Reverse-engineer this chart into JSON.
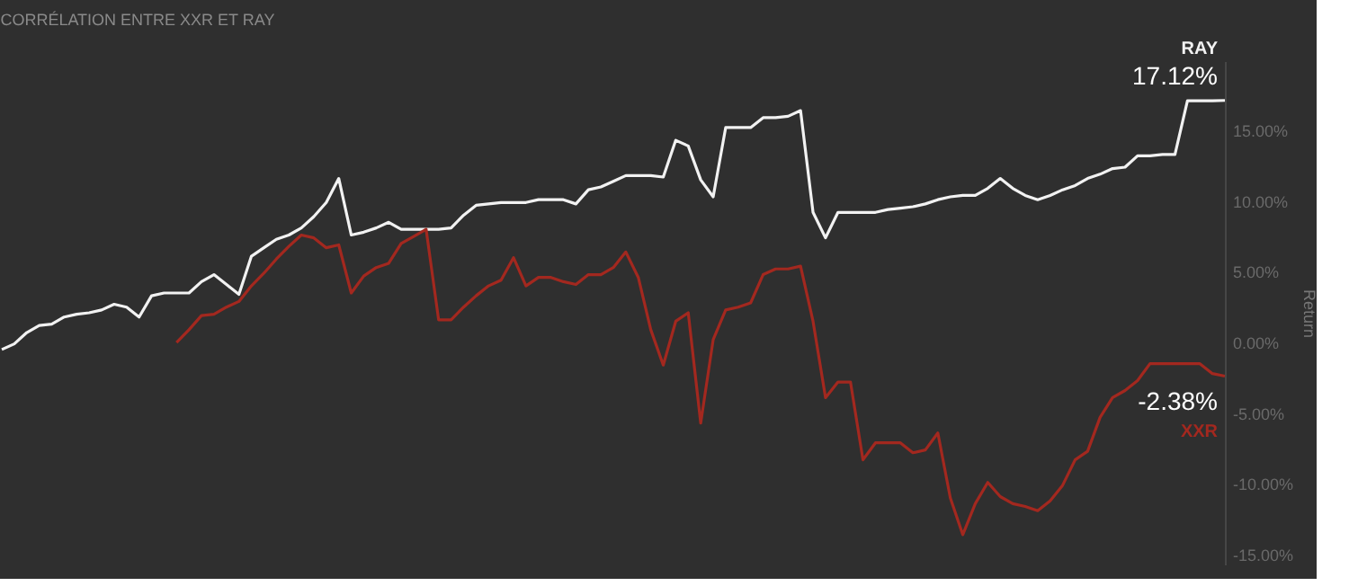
{
  "chart_data": {
    "type": "line",
    "title": "CORRÉLATION ENTRE XXR ET RAY",
    "ylabel": "Return",
    "categories": [
      null,
      null,
      null,
      null,
      null,
      null,
      null,
      null,
      null,
      null,
      null,
      null,
      null,
      null,
      null,
      null,
      null,
      null,
      null,
      null,
      null,
      null,
      null,
      null,
      null,
      null,
      null,
      null,
      null,
      null,
      null,
      null,
      null,
      null,
      null,
      null,
      null,
      null,
      null,
      null,
      null,
      null,
      null,
      null,
      null,
      null,
      null,
      null,
      null,
      null,
      null,
      null,
      null,
      null,
      null,
      null,
      null,
      null,
      null,
      null,
      null,
      null,
      null,
      null,
      null,
      null,
      null,
      null,
      null,
      null,
      null,
      null,
      null,
      null,
      null,
      null,
      null,
      null,
      null,
      null,
      null,
      null,
      null,
      null,
      null,
      null,
      null,
      null,
      null,
      null,
      null,
      null,
      null,
      null,
      null,
      null,
      null,
      null,
      null
    ],
    "series": [
      {
        "name": "RAY",
        "color": "#f2f2f2",
        "values": [
          -0.5,
          -0.1,
          0.7,
          1.2,
          1.3,
          1.8,
          2.0,
          2.1,
          2.3,
          2.7,
          2.5,
          1.8,
          3.3,
          3.5,
          3.5,
          3.5,
          4.3,
          4.8,
          4.1,
          3.4,
          6.1,
          6.7,
          7.3,
          7.6,
          8.1,
          8.9,
          9.9,
          11.6,
          7.6,
          7.8,
          8.1,
          8.5,
          8.0,
          8.0,
          8.0,
          8.0,
          8.1,
          9.0,
          9.7,
          9.8,
          9.9,
          9.9,
          9.9,
          10.1,
          10.1,
          10.1,
          9.8,
          10.8,
          11.0,
          11.4,
          11.8,
          11.8,
          11.8,
          11.7,
          14.3,
          13.9,
          11.5,
          10.3,
          15.2,
          15.2,
          15.2,
          15.9,
          15.9,
          16.0,
          16.4,
          9.2,
          7.4,
          9.2,
          9.2,
          9.2,
          9.2,
          9.4,
          9.5,
          9.6,
          9.8,
          10.1,
          10.3,
          10.4,
          10.4,
          10.9,
          11.6,
          10.9,
          10.4,
          10.1,
          10.4,
          10.8,
          11.1,
          11.6,
          11.9,
          12.3,
          12.4,
          13.2,
          13.2,
          13.3,
          13.3,
          17.1,
          17.1,
          17.1,
          17.12
        ],
        "value_labels": [
          null,
          null,
          null,
          null,
          null,
          null,
          null,
          null,
          null,
          null,
          null,
          null,
          null,
          null,
          null,
          null,
          null,
          null,
          null,
          null,
          null,
          null,
          null,
          null,
          null,
          null,
          null,
          null,
          null,
          null,
          null,
          null,
          null,
          null,
          null,
          null,
          null,
          null,
          null,
          null,
          null,
          null,
          null,
          null,
          null,
          null,
          null,
          null,
          null,
          null,
          null,
          null,
          null,
          null,
          null,
          null,
          null,
          null,
          null,
          null,
          null,
          null,
          null,
          null,
          null,
          null,
          null,
          null,
          null,
          null,
          null,
          null,
          null,
          null,
          null,
          null,
          null,
          null,
          null,
          null,
          null,
          null,
          null,
          null,
          null,
          null,
          null,
          null,
          null,
          null,
          null,
          null,
          null,
          null,
          null,
          null,
          null,
          null,
          "17.12%"
        ]
      },
      {
        "name": "XXR",
        "color": "#a3281f",
        "values": [
          null,
          null,
          null,
          null,
          null,
          null,
          null,
          null,
          null,
          null,
          null,
          null,
          null,
          null,
          0.0,
          0.9,
          1.9,
          2.0,
          2.5,
          2.9,
          4.0,
          4.9,
          5.9,
          6.8,
          7.6,
          7.4,
          6.7,
          6.9,
          3.5,
          4.7,
          5.3,
          5.6,
          7.0,
          7.5,
          8.0,
          1.6,
          1.6,
          2.5,
          3.3,
          4.0,
          4.4,
          6.0,
          4.0,
          4.6,
          4.6,
          4.3,
          4.1,
          4.8,
          4.8,
          5.3,
          6.4,
          4.6,
          0.9,
          -1.6,
          1.5,
          2.1,
          -5.7,
          0.2,
          2.3,
          2.5,
          2.8,
          4.8,
          5.2,
          5.2,
          5.4,
          1.5,
          -3.9,
          -2.8,
          -2.8,
          -8.3,
          -7.1,
          -7.1,
          -7.1,
          -7.8,
          -7.6,
          -6.4,
          -11.0,
          -13.6,
          -11.4,
          -9.9,
          -10.9,
          -11.4,
          -11.6,
          -11.9,
          -11.2,
          -10.1,
          -8.3,
          -7.7,
          -5.3,
          -3.9,
          -3.4,
          -2.7,
          -1.5,
          -1.5,
          -1.5,
          -1.5,
          -1.5,
          -2.2,
          -2.38
        ],
        "value_labels": [
          null,
          null,
          null,
          null,
          null,
          null,
          null,
          null,
          null,
          null,
          null,
          null,
          null,
          null,
          null,
          null,
          null,
          null,
          null,
          null,
          null,
          null,
          null,
          null,
          null,
          null,
          null,
          null,
          null,
          null,
          null,
          null,
          null,
          null,
          null,
          null,
          null,
          null,
          null,
          null,
          null,
          null,
          null,
          null,
          null,
          null,
          null,
          null,
          null,
          null,
          null,
          null,
          null,
          null,
          null,
          null,
          null,
          null,
          null,
          null,
          null,
          null,
          null,
          null,
          null,
          null,
          null,
          null,
          null,
          null,
          null,
          null,
          null,
          null,
          null,
          null,
          null,
          null,
          null,
          null,
          null,
          null,
          null,
          null,
          null,
          null,
          null,
          null,
          null,
          null,
          null,
          null,
          null,
          null,
          null,
          null,
          null,
          null,
          "-2.38%"
        ]
      }
    ],
    "ylim": [
      -15.7,
      19.9
    ],
    "yticks": [
      {
        "value": -15,
        "label": "-15.00%"
      },
      {
        "value": -10,
        "label": "-10.00%"
      },
      {
        "value": -5,
        "label": "-5.00%"
      },
      {
        "value": 0,
        "label": "0.00%"
      },
      {
        "value": 5,
        "label": "5.00%"
      },
      {
        "value": 10,
        "label": "10.00%"
      },
      {
        "value": 15,
        "label": "15.00%"
      }
    ],
    "grid": false,
    "marker": "none",
    "line_style": "solid",
    "tick_labels": "y"
  }
}
